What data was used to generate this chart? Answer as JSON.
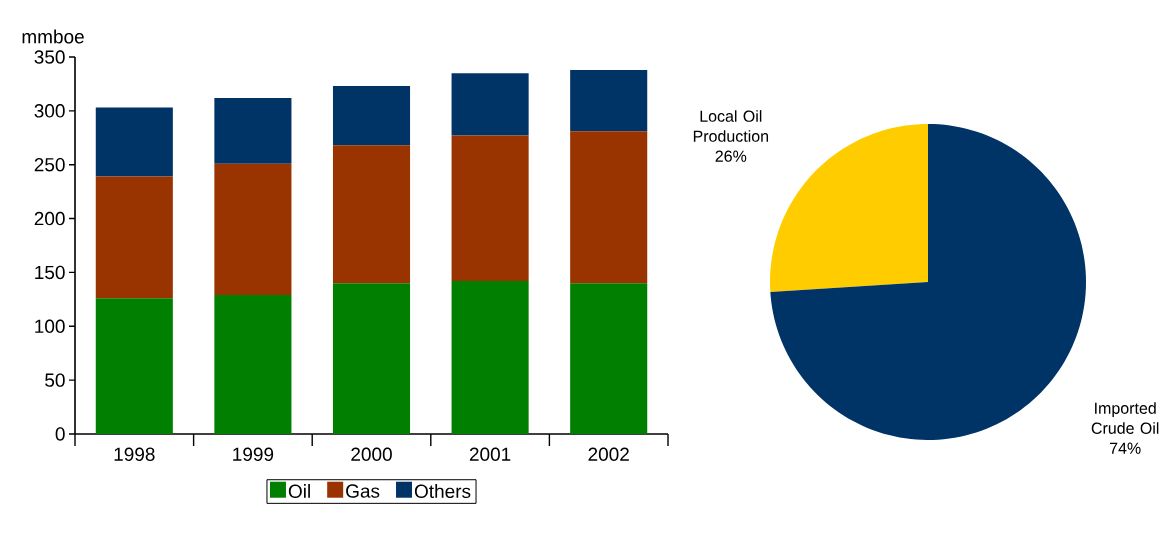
{
  "chart_data": [
    {
      "type": "bar",
      "stacked": true,
      "ylabel": "mmboe",
      "categories": [
        "1998",
        "1999",
        "2000",
        "2001",
        "2002"
      ],
      "series": [
        {
          "name": "Oil",
          "color": "#007f00",
          "values": [
            126,
            129,
            140,
            142,
            140
          ]
        },
        {
          "name": "Gas",
          "color": "#993300",
          "values": [
            113,
            122,
            128,
            135,
            141
          ]
        },
        {
          "name": "Others",
          "color": "#003366",
          "values": [
            64,
            61,
            55,
            58,
            57
          ]
        }
      ],
      "ylim": [
        0,
        350
      ],
      "yticks": [
        0,
        50,
        100,
        150,
        200,
        250,
        300,
        350
      ],
      "legend": "bottom"
    },
    {
      "type": "pie",
      "categories": [
        "Local Oil Production",
        "Imported Crude Oil"
      ],
      "values": [
        26,
        74
      ],
      "colors": [
        "#ffcc00",
        "#003366"
      ],
      "value_labels": [
        "26%",
        "74%"
      ]
    }
  ]
}
